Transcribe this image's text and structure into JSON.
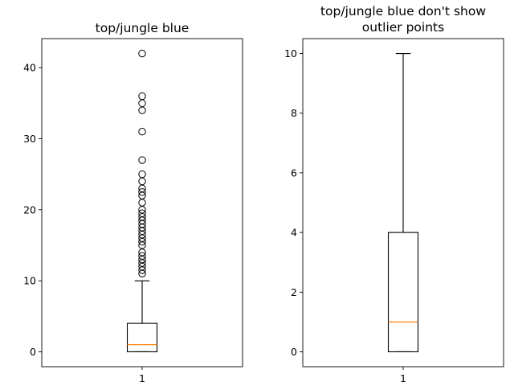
{
  "chart_data": [
    {
      "type": "box",
      "title": "top/jungle blue",
      "categories": [
        "1"
      ],
      "ylim": [
        -2.1,
        44.1
      ],
      "yticks": [
        0,
        10,
        20,
        30,
        40
      ],
      "box": {
        "q1": 0,
        "median": 1,
        "q3": 4,
        "whisker_low": 0,
        "whisker_high": 10
      },
      "show_fliers": true,
      "fliers": [
        11,
        11.5,
        12,
        12.5,
        13,
        13.5,
        14,
        15,
        15.5,
        16,
        16.5,
        17,
        17.5,
        18,
        18.5,
        19,
        19.5,
        20,
        21,
        22,
        22.5,
        23,
        24,
        25,
        27,
        31,
        34,
        35,
        36,
        42
      ],
      "colors": {
        "box": "#000000",
        "median": "#ff7f0e",
        "flier": "#000000"
      }
    },
    {
      "type": "box",
      "title": "top/jungle blue don't show\noutlier points",
      "categories": [
        "1"
      ],
      "ylim": [
        -0.5,
        10.5
      ],
      "yticks": [
        0,
        2,
        4,
        6,
        8,
        10
      ],
      "box": {
        "q1": 0,
        "median": 1,
        "q3": 4,
        "whisker_low": 0,
        "whisker_high": 10
      },
      "show_fliers": false,
      "fliers": [],
      "colors": {
        "box": "#000000",
        "median": "#ff7f0e",
        "flier": "#000000"
      }
    }
  ]
}
